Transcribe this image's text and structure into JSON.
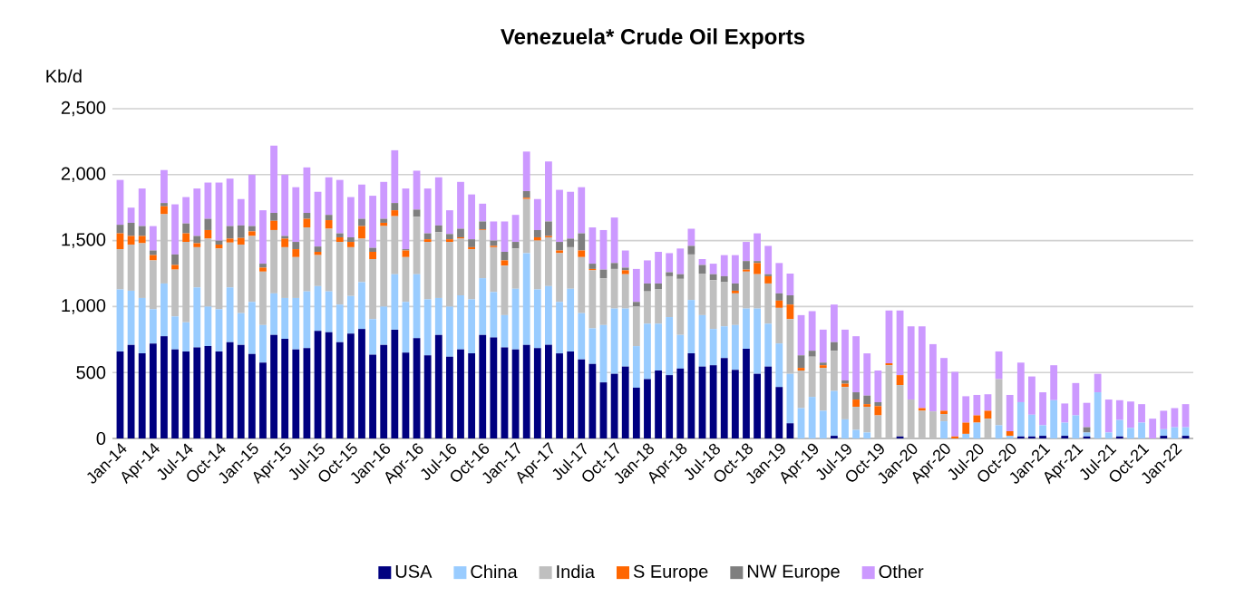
{
  "chart_data": {
    "type": "bar",
    "stacked": true,
    "title": "Venezuela* Crude Oil Exports",
    "ylabel": "Kb/d",
    "categories": [
      "Jan-14",
      null,
      null,
      "Apr-14",
      null,
      null,
      "Jul-14",
      null,
      null,
      "Oct-14",
      null,
      null,
      "Jan-15",
      null,
      null,
      "Apr-15",
      null,
      null,
      "Jul-15",
      null,
      null,
      "Oct-15",
      null,
      null,
      "Jan-16",
      null,
      null,
      "Apr-16",
      null,
      null,
      "Jul-16",
      null,
      null,
      "Oct-16",
      null,
      null,
      "Jan-17",
      null,
      null,
      "Apr-17",
      null,
      null,
      "Jul-17",
      null,
      null,
      "Oct-17",
      null,
      null,
      "Jan-18",
      null,
      null,
      "Apr-18",
      null,
      null,
      "Jul-18",
      null,
      null,
      "Oct-18",
      null,
      null,
      "Jan-19",
      null,
      null,
      "Apr-19",
      null,
      null,
      "Jul-19",
      null,
      null,
      "Oct-19",
      null,
      null,
      "Jan-20",
      null,
      null,
      "Apr-20",
      null,
      null,
      "Jul-20",
      null,
      null,
      "Oct-20",
      null,
      null,
      "Jan-21",
      null,
      null,
      "Apr-21",
      null,
      null,
      "Jul-21",
      null,
      null,
      "Oct-21",
      null,
      null,
      "Jan-22",
      null
    ],
    "series": [
      {
        "name": "USA",
        "color": "#000080",
        "values": [
          660,
          710,
          645,
          720,
          775,
          675,
          660,
          690,
          700,
          660,
          730,
          710,
          640,
          575,
          785,
          755,
          675,
          685,
          815,
          805,
          730,
          795,
          830,
          635,
          710,
          825,
          650,
          760,
          630,
          785,
          620,
          675,
          645,
          785,
          765,
          690,
          675,
          710,
          685,
          710,
          645,
          660,
          600,
          565,
          425,
          490,
          545,
          385,
          450,
          515,
          480,
          530,
          645,
          545,
          555,
          610,
          520,
          680,
          490,
          545,
          390,
          115,
          0,
          0,
          0,
          20,
          0,
          0,
          0,
          0,
          0,
          15,
          0,
          0,
          0,
          0,
          0,
          0,
          0,
          0,
          0,
          0,
          15,
          15,
          20,
          0,
          20,
          0,
          15,
          0,
          0,
          15,
          0,
          0,
          0,
          20,
          0,
          20
        ]
      },
      {
        "name": "China",
        "color": "#99ccff",
        "values": [
          470,
          410,
          420,
          260,
          400,
          250,
          220,
          455,
          300,
          320,
          415,
          240,
          395,
          285,
          315,
          310,
          390,
          430,
          340,
          310,
          285,
          285,
          355,
          270,
          290,
          420,
          385,
          485,
          425,
          280,
          380,
          410,
          410,
          430,
          345,
          245,
          460,
          695,
          445,
          445,
          390,
          475,
          350,
          270,
          435,
          495,
          440,
          315,
          420,
          355,
          440,
          255,
          405,
          390,
          275,
          240,
          340,
          305,
          495,
          325,
          330,
          375,
          230,
          315,
          210,
          340,
          145,
          65,
          45,
          0,
          0,
          0,
          0,
          0,
          null,
          130,
          0,
          35,
          120,
          null,
          100,
          20,
          260,
          165,
          80,
          290,
          100,
          175,
          30,
          350,
          45,
          125,
          80,
          120,
          0,
          50,
          85,
          65
        ]
      },
      {
        "name": "India",
        "color": "#bfbfbf",
        "values": [
          305,
          350,
          415,
          370,
          525,
          355,
          610,
          305,
          515,
          460,
          340,
          520,
          500,
          405,
          480,
          385,
          310,
          485,
          235,
          475,
          475,
          370,
          330,
          455,
          610,
          440,
          340,
          435,
          435,
          500,
          490,
          430,
          380,
          365,
          340,
          375,
          305,
          410,
          370,
          370,
          370,
          315,
          425,
          440,
          355,
          300,
          260,
          300,
          245,
          260,
          310,
          425,
          345,
          315,
          370,
          335,
          240,
          280,
          260,
          305,
          270,
          415,
          285,
          305,
          325,
          305,
          245,
          175,
          195,
          175,
          555,
          390,
          295,
          210,
          205,
          55,
          0,
          0,
          0,
          150,
          350,
          0,
          0,
          0,
          0,
          0,
          0,
          0,
          0,
          0,
          0,
          0,
          0,
          0,
          0,
          0,
          0,
          0
        ]
      },
      {
        "name": "S Europe",
        "color": "#ff6600",
        "values": [
          120,
          65,
          55,
          40,
          60,
          35,
          65,
          30,
          65,
          30,
          30,
          50,
          35,
          30,
          70,
          65,
          60,
          65,
          25,
          65,
          35,
          40,
          95,
          55,
          25,
          45,
          50,
          null,
          20,
          0,
          20,
          10,
          15,
          5,
          10,
          40,
          0,
          10,
          25,
          10,
          20,
          0,
          50,
          10,
          0,
          0,
          30,
          0,
          0,
          0,
          0,
          0,
          0,
          0,
          0,
          0,
          20,
          15,
          85,
          55,
          55,
          110,
          20,
          0,
          20,
          0,
          25,
          55,
          20,
          70,
          15,
          75,
          0,
          20,
          0,
          25,
          15,
          85,
          55,
          60,
          0,
          35,
          0,
          0,
          0,
          0,
          0,
          0,
          0,
          0,
          0,
          0,
          0,
          0,
          0,
          0,
          0,
          0
        ]
      },
      {
        "name": "NW Europe",
        "color": "#7f7f7f",
        "values": [
          65,
          100,
          75,
          35,
          25,
          80,
          75,
          55,
          85,
          30,
          95,
          95,
          40,
          30,
          60,
          20,
          55,
          45,
          40,
          40,
          30,
          35,
          55,
          30,
          30,
          55,
          10,
          55,
          45,
          50,
          40,
          65,
          60,
          60,
          40,
          65,
          50,
          50,
          55,
          110,
          65,
          65,
          130,
          40,
          65,
          45,
          20,
          35,
          60,
          45,
          30,
          35,
          65,
          65,
          45,
          45,
          55,
          65,
          15,
          15,
          55,
          70,
          95,
          45,
          20,
          65,
          25,
          55,
          65,
          30,
          0,
          0,
          0,
          0,
          0,
          0,
          0,
          0,
          0,
          0,
          0,
          0,
          0,
          0,
          0,
          0,
          0,
          0,
          40,
          0,
          0,
          0,
          0,
          0,
          0,
          0,
          0,
          0
        ]
      },
      {
        "name": "Other",
        "color": "#cc99ff",
        "values": [
          340,
          115,
          285,
          185,
          250,
          380,
          200,
          360,
          275,
          440,
          360,
          200,
          390,
          405,
          510,
          465,
          415,
          345,
          415,
          285,
          405,
          305,
          260,
          395,
          280,
          400,
          460,
          295,
          340,
          365,
          180,
          355,
          340,
          135,
          145,
          230,
          205,
          300,
          235,
          455,
          395,
          355,
          350,
          275,
          300,
          345,
          130,
          250,
          175,
          240,
          145,
          195,
          130,
          45,
          80,
          160,
          215,
          145,
          210,
          215,
          230,
          165,
          305,
          300,
          250,
          285,
          385,
          425,
          320,
          240,
          400,
          490,
          555,
          620,
          510,
          400,
          490,
          200,
          155,
          125,
          210,
          275,
          300,
          290,
          250,
          265,
          145,
          245,
          185,
          140,
          250,
          150,
          200,
          140,
          150,
          140,
          145,
          175
        ]
      }
    ],
    "ylim": [
      0,
      2500
    ],
    "yticks": [
      0,
      500,
      {
        "value": 1000,
        "label": "1,000"
      },
      {
        "value": 1500,
        "label": "1,500"
      },
      {
        "value": 2000,
        "label": "2,000"
      },
      {
        "value": 2500,
        "label": "2,500"
      }
    ],
    "grid": "y",
    "legend": "bottom"
  }
}
